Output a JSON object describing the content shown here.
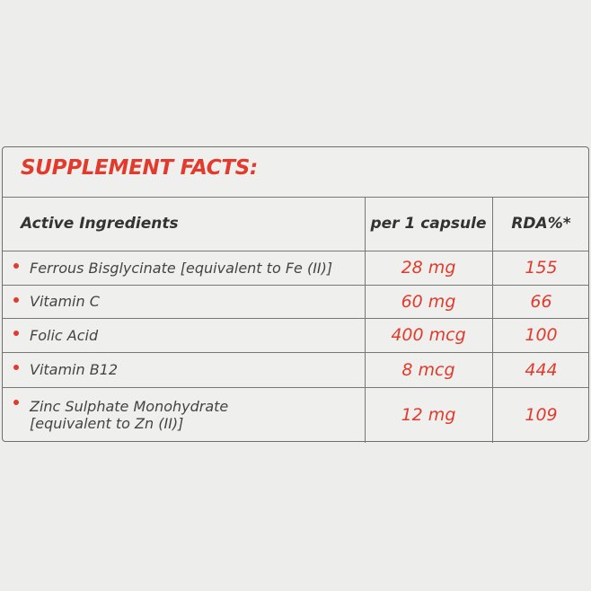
{
  "table": {
    "title": "SUPPLEMENT FACTS:",
    "headers": [
      "Active Ingredients",
      "per 1 capsule",
      "RDA%*"
    ],
    "rows": [
      [
        [
          "Ferrous Bisglycinate [equivalent to Fe (II)]"
        ],
        "28 mg",
        155
      ],
      [
        [
          "Vitamin C"
        ],
        "60 mg",
        66
      ],
      [
        [
          "Folic Acid"
        ],
        "400 mcg",
        100
      ],
      [
        [
          "Vitamin B12"
        ],
        "8 mcg",
        444
      ],
      [
        [
          "Zinc Sulphate Monohydrate",
          "[equivalent to Zn (II)]"
        ],
        "12 mg",
        109
      ]
    ]
  }
}
